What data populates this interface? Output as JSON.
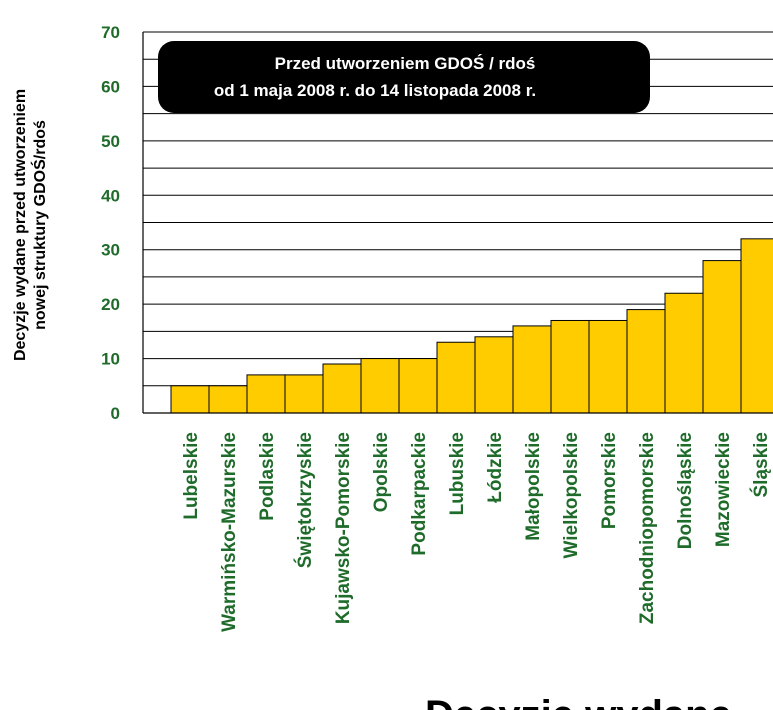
{
  "chart_data": {
    "type": "bar",
    "title": "",
    "ylabel_lines": [
      "Decyzje wydane przed utworzeniem",
      "nowej struktury GDOŚ/rdoś"
    ],
    "xlabel": "",
    "ylim": [
      0,
      70
    ],
    "yticks": [
      0,
      10,
      20,
      30,
      40,
      50,
      60,
      70
    ],
    "grid": true,
    "bar_color": "#ffcc00",
    "tick_color": "#1e6b2a",
    "categories": [
      "Lubelskie",
      "Warmińsko-Mazurskie",
      "Podlaskie",
      "Świętokrzyskie",
      "Kujawsko-Pomorskie",
      "Opolskie",
      "Podkarpackie",
      "Lubuskie",
      "Łódzkie",
      "Małopolskie",
      "Wielkopolskie",
      "Pomorskie",
      "Zachodniopomorskie",
      "Dolnośląskie",
      "Mazowieckie",
      "Śląskie"
    ],
    "values": [
      5,
      5,
      7,
      7,
      9,
      10,
      10,
      13,
      14,
      16,
      17,
      17,
      19,
      22,
      28,
      32
    ],
    "annotation_lines": [
      "Przed utworzeniem GDOŚ / rdoś",
      "od 1 maja 2008 r. do 14 listopada 2008 r."
    ]
  },
  "cut_off_text": "Decyzje wydane"
}
